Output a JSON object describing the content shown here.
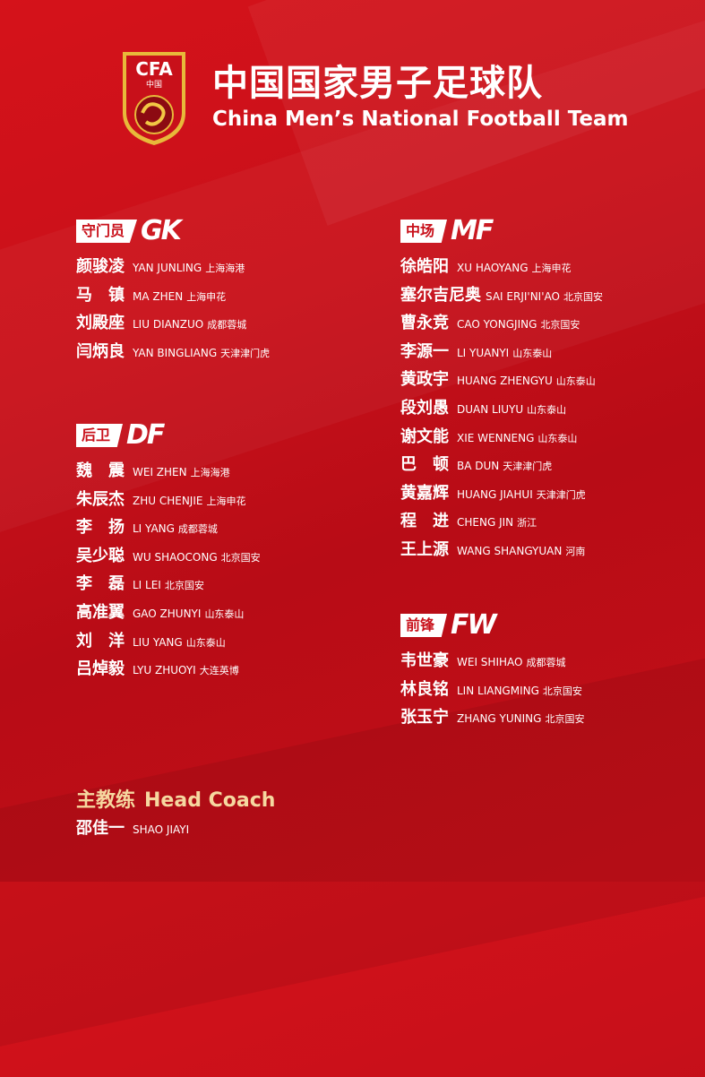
{
  "header": {
    "logo_text": "CFA 中国",
    "title_cn": "中国国家男子足球队",
    "title_en": "China Men’s National Football Team"
  },
  "colors": {
    "background": "#c8101a",
    "tag_bg": "#ffffff",
    "coach_title": "#f6d8a0"
  },
  "sections": {
    "gk": {
      "label": "守门员",
      "code": "GK",
      "players": [
        {
          "cn": "颜骏凌",
          "py": "YAN JUNLING",
          "club": "上海海港"
        },
        {
          "cn": "马　镇",
          "py": "MA ZHEN",
          "club": "上海申花"
        },
        {
          "cn": "刘殿座",
          "py": "LIU DIANZUO",
          "club": "成都蓉城"
        },
        {
          "cn": "闫炳良",
          "py": "YAN BINGLIANG",
          "club": "天津津门虎"
        }
      ]
    },
    "df": {
      "label": "后卫",
      "code": "DF",
      "players": [
        {
          "cn": "魏　震",
          "py": "WEI ZHEN",
          "club": "上海海港"
        },
        {
          "cn": "朱辰杰",
          "py": "ZHU CHENJIE",
          "club": "上海申花"
        },
        {
          "cn": "李　扬",
          "py": "LI YANG",
          "club": "成都蓉城"
        },
        {
          "cn": "吴少聪",
          "py": "WU SHAOCONG",
          "club": "北京国安"
        },
        {
          "cn": "李　磊",
          "py": "LI LEI",
          "club": "北京国安"
        },
        {
          "cn": "高准翼",
          "py": "GAO ZHUNYI",
          "club": "山东泰山"
        },
        {
          "cn": "刘　洋",
          "py": "LIU YANG",
          "club": "山东泰山"
        },
        {
          "cn": "吕焯毅",
          "py": "LYU ZHUOYI",
          "club": "大连英博"
        }
      ]
    },
    "mf": {
      "label": "中场",
      "code": "MF",
      "players": [
        {
          "cn": "徐皓阳",
          "py": "XU HAOYANG",
          "club": "上海申花"
        },
        {
          "cn": "塞尔吉尼奥",
          "py": "SAI ERJI'NI'AO",
          "club": "北京国安"
        },
        {
          "cn": "曹永竞",
          "py": "CAO YONGJING",
          "club": "北京国安"
        },
        {
          "cn": "李源一",
          "py": "LI YUANYI",
          "club": "山东泰山"
        },
        {
          "cn": "黄政宇",
          "py": "HUANG ZHENGYU",
          "club": "山东泰山"
        },
        {
          "cn": "段刘愚",
          "py": "DUAN LIUYU",
          "club": "山东泰山"
        },
        {
          "cn": "谢文能",
          "py": "XIE WENNENG",
          "club": "山东泰山"
        },
        {
          "cn": "巴　顿",
          "py": "BA DUN",
          "club": "天津津门虎"
        },
        {
          "cn": "黄嘉辉",
          "py": "HUANG JIAHUI",
          "club": "天津津门虎"
        },
        {
          "cn": "程　进",
          "py": "CHENG JIN",
          "club": "浙江"
        },
        {
          "cn": "王上源",
          "py": "WANG SHANGYUAN",
          "club": "河南"
        }
      ]
    },
    "fw": {
      "label": "前锋",
      "code": "FW",
      "players": [
        {
          "cn": "韦世豪",
          "py": "WEI SHIHAO",
          "club": "成都蓉城"
        },
        {
          "cn": "林良铭",
          "py": "LIN LIANGMING",
          "club": "北京国安"
        },
        {
          "cn": "张玉宁",
          "py": "ZHANG YUNING",
          "club": "北京国安"
        }
      ]
    }
  },
  "coach": {
    "title_cn": "主教练",
    "title_en": "Head Coach",
    "cn": "邵佳一",
    "py": "SHAO JIAYI"
  }
}
